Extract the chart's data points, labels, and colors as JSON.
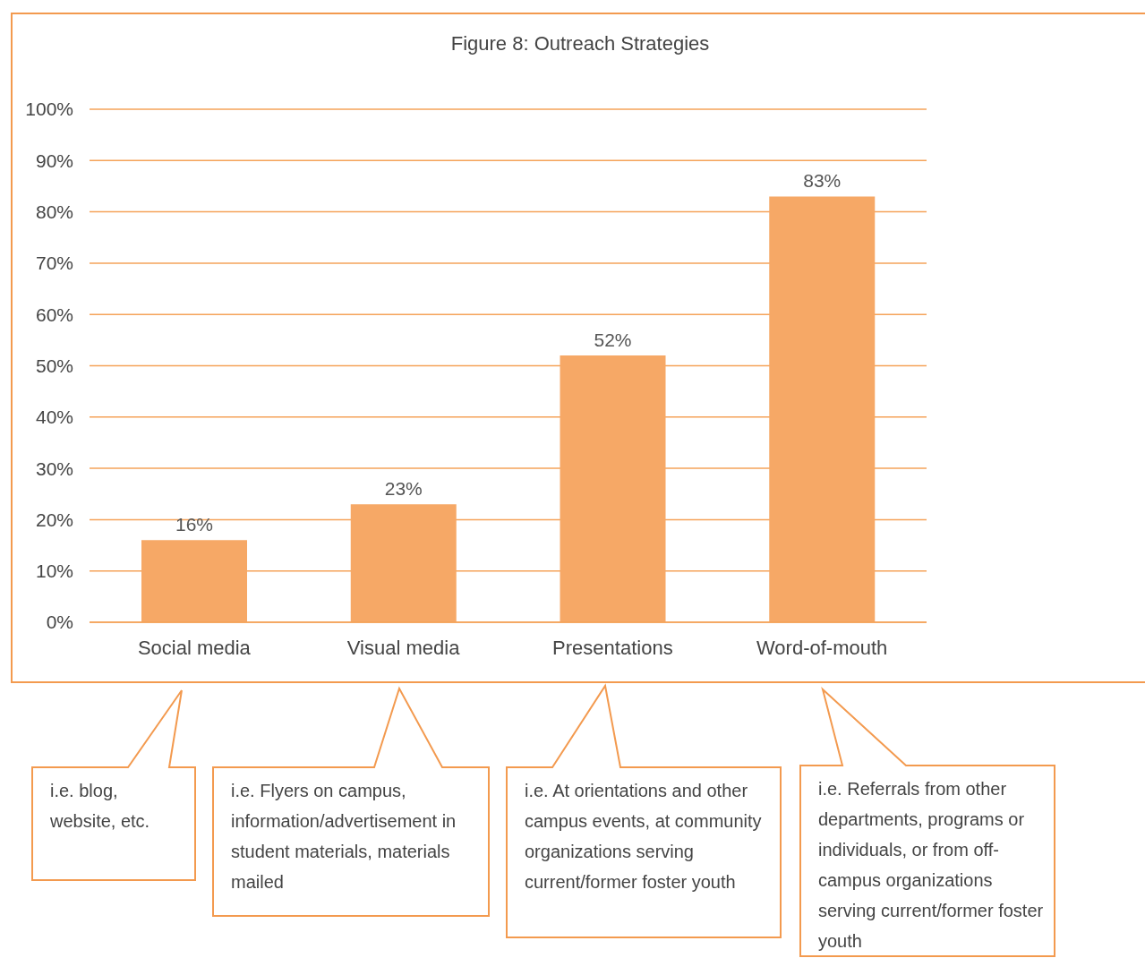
{
  "chart_data": {
    "type": "bar",
    "title": "Figure 8: Outreach Strategies",
    "categories": [
      "Social media",
      "Visual media",
      "Presentations",
      "Word-of-mouth"
    ],
    "values": [
      16,
      23,
      52,
      83
    ],
    "color": "#f6a866",
    "ylim": [
      0,
      100
    ],
    "yticks": [
      {
        "value": 0,
        "label": "0%"
      },
      {
        "value": 10,
        "label": "10%"
      },
      {
        "value": 20,
        "label": "20%"
      },
      {
        "value": 30,
        "label": "30%"
      },
      {
        "value": 40,
        "label": "40%"
      },
      {
        "value": 50,
        "label": "50%"
      },
      {
        "value": 60,
        "label": "60%"
      },
      {
        "value": 70,
        "label": "70%"
      },
      {
        "value": 80,
        "label": "80%"
      },
      {
        "value": 90,
        "label": "90%"
      },
      {
        "value": 100,
        "label": "100%"
      }
    ],
    "value_labels": [
      "16%",
      "23%",
      "52%",
      "83%"
    ],
    "grid": "y",
    "annotations": [
      "i.e. blog, website, etc.",
      "i.e. Flyers on campus, information/advertisement in student materials, materials mailed",
      "i.e. At orientations and other campus events, at community organizations serving current/former foster youth",
      "i.e. Referrals from other departments, programs or individuals, or from off-campus organizations serving current/former foster youth"
    ]
  }
}
